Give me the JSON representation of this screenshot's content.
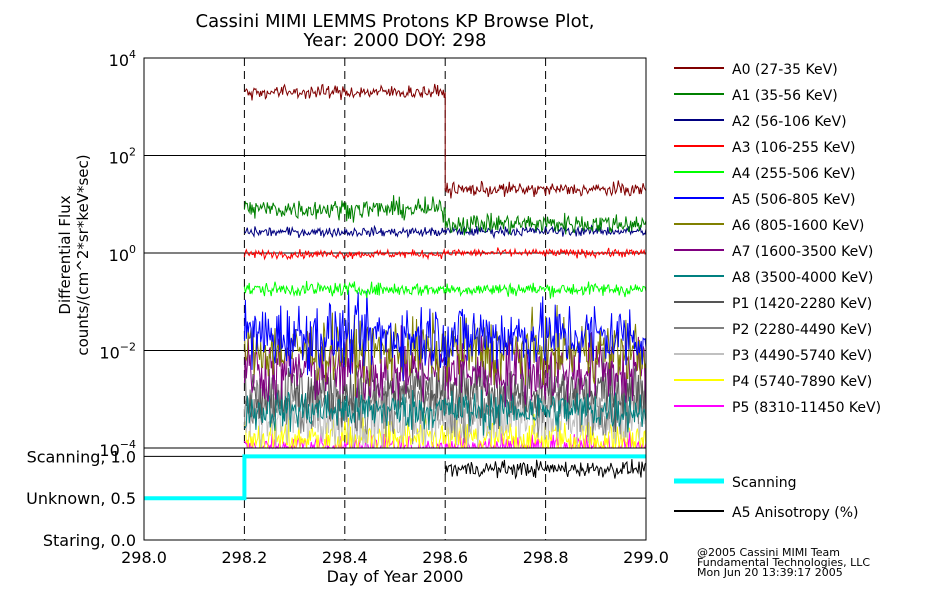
{
  "title_line1": "Cassini MIMI LEMMS Protons KP Browse Plot,",
  "title_line2": "Year: 2000 DOY: 298",
  "credits": [
    "@2005 Cassini MIMI Team",
    "Fundamental Technologies, LLC",
    "Mon Jun 20 13:39:17 2005"
  ],
  "chart_data": [
    {
      "type": "line",
      "ylabel": "Differential Flux",
      "ylabel2": "counts/(cm^2*sr*keV*sec)",
      "y_scale": "log",
      "ylim": [
        0.0001,
        10000
      ],
      "y_ticks": [
        {
          "v": 0.0001,
          "base": "10",
          "exp": "−4"
        },
        {
          "v": 0.01,
          "base": "10",
          "exp": "−2"
        },
        {
          "v": 1,
          "base": "10",
          "exp": "0"
        },
        {
          "v": 100,
          "base": "10",
          "exp": "2"
        },
        {
          "v": 10000,
          "base": "10",
          "exp": "4"
        }
      ],
      "xlim": [
        298.0,
        299.0
      ],
      "x_gridlines": [
        298.2,
        298.4,
        298.6,
        298.8
      ],
      "legend_position": "right",
      "data_start": 298.2,
      "step_at": 298.6,
      "series": [
        {
          "name": "A0 (27-35 KeV)",
          "color": "#800000",
          "before": 2000,
          "after": 20,
          "noise": 0.1
        },
        {
          "name": "A1 (35-56 KeV)",
          "color": "#008000",
          "before": 8,
          "after": 4,
          "noise": 0.15
        },
        {
          "name": "A2 (56-106 KeV)",
          "color": "#000080",
          "before": 2.7,
          "after": 2.8,
          "noise": 0.07
        },
        {
          "name": "A3 (106-255 KeV)",
          "color": "#ff0000",
          "before": 0.95,
          "after": 1.0,
          "noise": 0.06
        },
        {
          "name": "A4 (255-506 KeV)",
          "color": "#00ff00",
          "before": 0.18,
          "after": 0.18,
          "noise": 0.1
        },
        {
          "name": "A5 (506-805 KeV)",
          "color": "#0000ff",
          "before": 0.02,
          "after": 0.02,
          "noise": 0.5
        },
        {
          "name": "A6 (805-1600 KeV)",
          "color": "#808000",
          "before": 0.01,
          "after": 0.01,
          "noise": 0.45
        },
        {
          "name": "A7 (1600-3500 KeV)",
          "color": "#800080",
          "before": 0.004,
          "after": 0.004,
          "noise": 0.5
        },
        {
          "name": "A8 (3500-4000 KeV)",
          "color": "#008080",
          "before": 0.0006,
          "after": 0.0006,
          "noise": 0.3
        },
        {
          "name": "P1 (1420-2280 KeV)",
          "color": "#555555",
          "before": 0.0015,
          "after": 0.0015,
          "noise": 0.45
        },
        {
          "name": "P2 (2280-4490 KeV)",
          "color": "#808080",
          "before": 0.0008,
          "after": 0.0008,
          "noise": 0.45
        },
        {
          "name": "P3 (4490-5740 KeV)",
          "color": "#c0c0c0",
          "before": 0.0004,
          "after": 0.0004,
          "noise": 0.45
        },
        {
          "name": "P4 (5740-7890 KeV)",
          "color": "#ffff00",
          "before": 0.00015,
          "after": 0.00015,
          "noise": 0.3
        },
        {
          "name": "P5 (8310-11450 KeV)",
          "color": "#ff00ff",
          "before": 0.0001,
          "after": 0.0001,
          "noise": 0.2
        }
      ]
    },
    {
      "type": "line",
      "xlabel": "Day of Year 2000",
      "x_ticks": [
        "298.0",
        "298.2",
        "298.4",
        "298.6",
        "298.8",
        "299.0"
      ],
      "y_ticks": [
        {
          "v": 1.0,
          "label": "Scanning, 1.0"
        },
        {
          "v": 0.5,
          "label": "Unknown, 0.5"
        },
        {
          "v": 0.0,
          "label": "Staring, 0.0"
        }
      ],
      "ylim": [
        0.0,
        1.1
      ],
      "legend_position": "right",
      "series": [
        {
          "name": "Scanning",
          "color": "#00ffff",
          "x": [
            298.0,
            298.2,
            298.2,
            299.0
          ],
          "y": [
            0.5,
            0.5,
            1.0,
            1.0
          ]
        },
        {
          "name": "A5 Anisotropy (%)",
          "color": "#000000",
          "start": 298.6,
          "mean": 0.85,
          "noise": 0.07
        }
      ]
    }
  ]
}
